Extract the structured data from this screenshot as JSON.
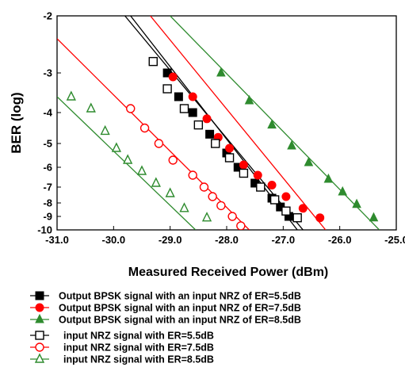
{
  "chart_data": {
    "type": "scatter",
    "title": "",
    "xlabel": "Measured Received Power (dBm)",
    "ylabel": "BER (log)",
    "xlim": [
      -31.0,
      -25.0
    ],
    "ylim": [
      -10,
      -2
    ],
    "x_ticks": [
      "-31.0",
      "-30.0",
      "-29.0",
      "-28.0",
      "-27.0",
      "-26.0",
      "-25.0"
    ],
    "y_ticks": [
      "-2",
      "-3",
      "-4",
      "-5",
      "-6",
      "-7",
      "-8",
      "-9",
      "-10"
    ],
    "y_scale": "log BER (-log(-log(BER)) style ticks)",
    "grid": false,
    "legend_position": "bottom",
    "series": [
      {
        "name": "Output BPSK signal with an input NRZ of ER=5.5dB",
        "color": "#000000",
        "marker": "filled-square",
        "points": [
          [
            -29.05,
            -3.0
          ],
          [
            -28.85,
            -3.6
          ],
          [
            -28.6,
            -4.0
          ],
          [
            -28.3,
            -4.7
          ],
          [
            -28.0,
            -5.4
          ],
          [
            -27.8,
            -6.0
          ],
          [
            -27.5,
            -6.8
          ],
          [
            -27.2,
            -7.7
          ],
          [
            -27.05,
            -8.3
          ],
          [
            -26.9,
            -9.0
          ]
        ],
        "fit_line": [
          [
            -29.7,
            -2.0
          ],
          [
            -26.75,
            -10.0
          ]
        ]
      },
      {
        "name": "Output BPSK signal with an input NRZ of ER=7.5dB",
        "color": "#ff0000",
        "marker": "filled-circle",
        "points": [
          [
            -28.95,
            -3.1
          ],
          [
            -28.6,
            -3.6
          ],
          [
            -28.35,
            -4.2
          ],
          [
            -28.15,
            -4.8
          ],
          [
            -27.95,
            -5.2
          ],
          [
            -27.7,
            -5.9
          ],
          [
            -27.45,
            -6.4
          ],
          [
            -27.2,
            -6.9
          ],
          [
            -26.95,
            -7.6
          ],
          [
            -26.65,
            -8.4
          ],
          [
            -26.35,
            -9.1
          ]
        ],
        "fit_line": [
          [
            -29.35,
            -2.0
          ],
          [
            -26.25,
            -10.0
          ]
        ]
      },
      {
        "name": "Output BPSK signal with an input NRZ of ER=8.5dB",
        "color": "#2e8b2e",
        "marker": "filled-triangle",
        "points": [
          [
            -28.1,
            -3.0
          ],
          [
            -27.6,
            -3.7
          ],
          [
            -27.2,
            -4.4
          ],
          [
            -26.85,
            -5.1
          ],
          [
            -26.55,
            -5.8
          ],
          [
            -26.2,
            -6.6
          ],
          [
            -25.95,
            -7.3
          ],
          [
            -25.7,
            -8.1
          ],
          [
            -25.4,
            -9.1
          ]
        ],
        "fit_line": [
          [
            -29.0,
            -2.0
          ],
          [
            -25.3,
            -10.0
          ]
        ]
      },
      {
        "name": "input NRZ signal with ER=5.5dB",
        "color": "#000000",
        "marker": "open-square",
        "points": [
          [
            -29.3,
            -2.8
          ],
          [
            -29.05,
            -3.4
          ],
          [
            -28.75,
            -3.9
          ],
          [
            -28.5,
            -4.4
          ],
          [
            -28.2,
            -5.0
          ],
          [
            -27.95,
            -5.6
          ],
          [
            -27.7,
            -6.3
          ],
          [
            -27.4,
            -7.0
          ],
          [
            -27.15,
            -7.8
          ],
          [
            -26.95,
            -8.6
          ],
          [
            -26.75,
            -9.1
          ]
        ],
        "fit_line": [
          [
            -29.8,
            -2.0
          ],
          [
            -26.65,
            -10.0
          ]
        ]
      },
      {
        "name": "input NRZ signal with ER=7.5dB",
        "color": "#ff0000",
        "marker": "open-circle",
        "points": [
          [
            -29.7,
            -3.9
          ],
          [
            -29.45,
            -4.5
          ],
          [
            -29.2,
            -5.0
          ],
          [
            -28.95,
            -5.7
          ],
          [
            -28.6,
            -6.4
          ],
          [
            -28.4,
            -7.0
          ],
          [
            -28.25,
            -7.6
          ],
          [
            -28.1,
            -8.2
          ],
          [
            -27.9,
            -9.0
          ],
          [
            -27.75,
            -9.7
          ]
        ],
        "fit_line": [
          [
            -31.0,
            -2.4
          ],
          [
            -27.6,
            -10.0
          ]
        ]
      },
      {
        "name": "input NRZ signal with ER=8.5dB",
        "color": "#2e8b2e",
        "marker": "open-triangle",
        "points": [
          [
            -30.75,
            -3.6
          ],
          [
            -30.4,
            -3.9
          ],
          [
            -30.15,
            -4.6
          ],
          [
            -29.95,
            -5.2
          ],
          [
            -29.75,
            -5.7
          ],
          [
            -29.5,
            -6.2
          ],
          [
            -29.25,
            -6.8
          ],
          [
            -29.0,
            -7.4
          ],
          [
            -28.75,
            -8.4
          ],
          [
            -28.35,
            -9.1
          ]
        ],
        "fit_line": [
          [
            -31.0,
            -3.6
          ],
          [
            -28.55,
            -10.0
          ]
        ]
      }
    ]
  }
}
